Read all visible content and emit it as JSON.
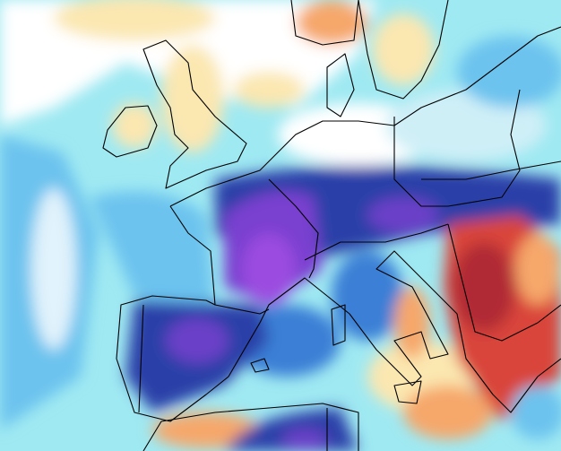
{
  "map": {
    "palette": {
      "sea_cyan": "#9fe9f2",
      "light_blue": "#6cc3ee",
      "mid_blue": "#3b7fd6",
      "deep_blue": "#2a3fa8",
      "purple": "#7a3fd0",
      "violet": "#9b4ce0",
      "white": "#ffffff",
      "cream": "#fbe7b0",
      "orange": "#f6a76a",
      "red": "#d9443a",
      "dark_red": "#b02a36",
      "border": "#000000"
    }
  }
}
